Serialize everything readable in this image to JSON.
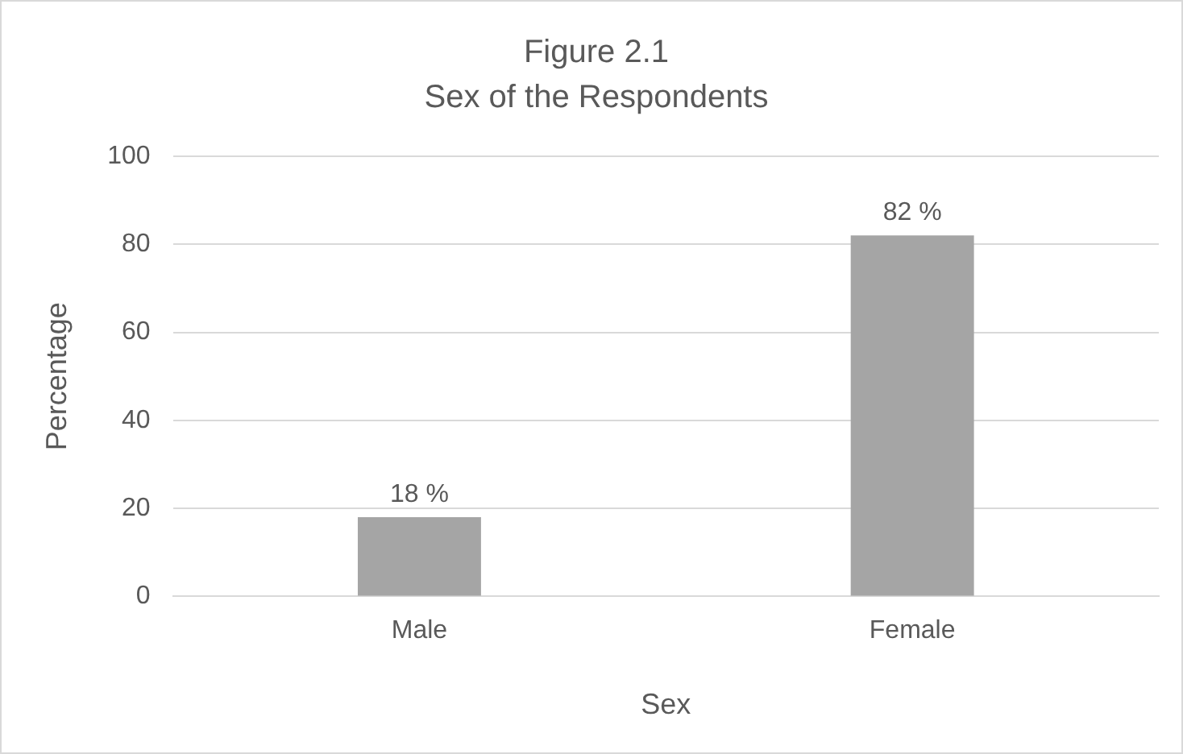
{
  "chart_data": {
    "type": "bar",
    "title": "Figure 2.1",
    "subtitle": "Sex of the Respondents",
    "xlabel": "Sex",
    "ylabel": "Percentage",
    "categories": [
      "Male",
      "Female"
    ],
    "values": [
      18,
      82
    ],
    "color": "#a5a5a5",
    "value_labels": [
      "18 %",
      "82 %"
    ],
    "ylim": [
      0,
      100
    ],
    "yticks": [
      0,
      20,
      40,
      60,
      80,
      100
    ],
    "grid": "y",
    "legend": false
  }
}
